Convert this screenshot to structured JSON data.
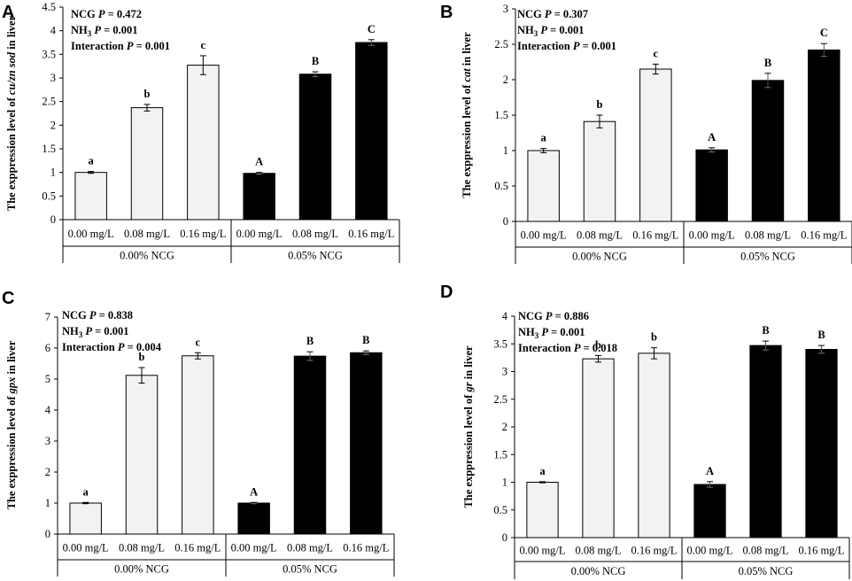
{
  "colors": {
    "light_bar": "#f2f2f2",
    "dark_bar": "#000000",
    "axis": "#000000"
  },
  "chart_data": [
    {
      "type": "bar",
      "panel": "A",
      "ylabel": {
        "pre": "The exppression level of ",
        "gene": "cu/zn sod",
        "post": " in liver"
      },
      "ylim": [
        0,
        4.5
      ],
      "ytick_step": 0.5,
      "ytick_labels": [
        "0",
        "0.5",
        "1",
        "1.5",
        "2",
        "2.5",
        "3",
        "3.5",
        "4",
        "4.5"
      ],
      "categories": [
        "0.00 mg/L",
        "0.08 mg/L",
        "0.16 mg/L",
        "0.00 mg/L",
        "0.08 mg/L",
        "0.16 mg/L"
      ],
      "groups": [
        "0.00% NCG",
        "0.05% NCG"
      ],
      "values": [
        1.0,
        2.37,
        3.27,
        0.98,
        3.08,
        3.75
      ],
      "errors": [
        0.02,
        0.07,
        0.2,
        0.02,
        0.05,
        0.06
      ],
      "sig": [
        "a",
        "b",
        "c",
        "A",
        "B",
        "C"
      ],
      "stats": [
        {
          "name": "NCG",
          "p_label": "P",
          "value": " = 0.472"
        },
        {
          "name": "NH",
          "sub": "3",
          "p_label": "P",
          "value": " = 0.001"
        },
        {
          "name": "Interaction",
          "p_label": "P",
          "value": " = 0.001"
        }
      ]
    },
    {
      "type": "bar",
      "panel": "B",
      "ylabel": {
        "pre": "The exppression level of ",
        "gene": "cat",
        "post": "  in liver"
      },
      "ylim": [
        0,
        3
      ],
      "ytick_step": 0.5,
      "ytick_labels": [
        "0",
        "0.5",
        "1",
        "1.5",
        "2",
        "2.5",
        "3"
      ],
      "categories": [
        "0.00 mg/L",
        "0.08 mg/L",
        "0.16 mg/L",
        "0.00 mg/L",
        "0.08 mg/L",
        "0.16 mg/L"
      ],
      "groups": [
        "0.00% NCG",
        "0.05% NCG"
      ],
      "values": [
        1.0,
        1.41,
        2.15,
        1.01,
        1.99,
        2.42
      ],
      "errors": [
        0.03,
        0.09,
        0.07,
        0.03,
        0.1,
        0.09
      ],
      "sig": [
        "a",
        "b",
        "c",
        "A",
        "B",
        "C"
      ],
      "stats": [
        {
          "name": "NCG",
          "p_label": "P",
          "value": " = 0.307"
        },
        {
          "name": "NH",
          "sub": "3",
          "p_label": "P",
          "value": " = 0.001"
        },
        {
          "name": "Interaction",
          "p_label": "P",
          "value": " = 0.001"
        }
      ]
    },
    {
      "type": "bar",
      "panel": "C",
      "ylabel": {
        "pre": "The exppression level of ",
        "gene": "gpx",
        "post": " in liver"
      },
      "ylim": [
        0,
        7
      ],
      "ytick_step": 1,
      "ytick_labels": [
        "0",
        "1",
        "2",
        "3",
        "4",
        "5",
        "6",
        "7"
      ],
      "categories": [
        "0.00 mg/L",
        "0.08 mg/L",
        "0.16 mg/L",
        "0.00 mg/L",
        "0.08 mg/L",
        "0.16 mg/L"
      ],
      "groups": [
        "0.00% NCG",
        "0.05% NCG"
      ],
      "values": [
        1.0,
        5.12,
        5.75,
        1.0,
        5.74,
        5.85
      ],
      "errors": [
        0.02,
        0.25,
        0.1,
        0.02,
        0.14,
        0.06
      ],
      "sig": [
        "a",
        "b",
        "c",
        "A",
        "B",
        "B"
      ],
      "stats": [
        {
          "name": "NCG",
          "p_label": "P",
          "value": " = 0.838"
        },
        {
          "name": "NH",
          "sub": "3",
          "p_label": "P",
          "value": " = 0.001"
        },
        {
          "name": "Interaction",
          "p_label": "P",
          "value": " = 0.004"
        }
      ]
    },
    {
      "type": "bar",
      "panel": "D",
      "ylabel": {
        "pre": "The exppression level of ",
        "gene": "gr",
        "post": " in liver"
      },
      "ylim": [
        0,
        4
      ],
      "ytick_step": 0.5,
      "ytick_labels": [
        "0",
        "0.5",
        "1",
        "1.5",
        "2",
        "2.5",
        "3",
        "3.5",
        "4"
      ],
      "categories": [
        "0.00 mg/L",
        "0.08 mg/L",
        "0.16 mg/L",
        "0.00 mg/L",
        "0.08 mg/L",
        "0.16 mg/L"
      ],
      "groups": [
        "0.00% NCG",
        "0.05% NCG"
      ],
      "values": [
        1.0,
        3.23,
        3.33,
        0.96,
        3.47,
        3.4
      ],
      "errors": [
        0.01,
        0.06,
        0.1,
        0.05,
        0.08,
        0.07
      ],
      "sig": [
        "a",
        "b",
        "b",
        "A",
        "B",
        "B"
      ],
      "stats": [
        {
          "name": "NCG",
          "p_label": "P",
          "value": " = 0.886"
        },
        {
          "name": "NH",
          "sub": "3",
          "p_label": "P",
          "value": " = 0.001"
        },
        {
          "name": "Interaction",
          "p_label": "P",
          "value": " = 0.018"
        }
      ]
    }
  ]
}
